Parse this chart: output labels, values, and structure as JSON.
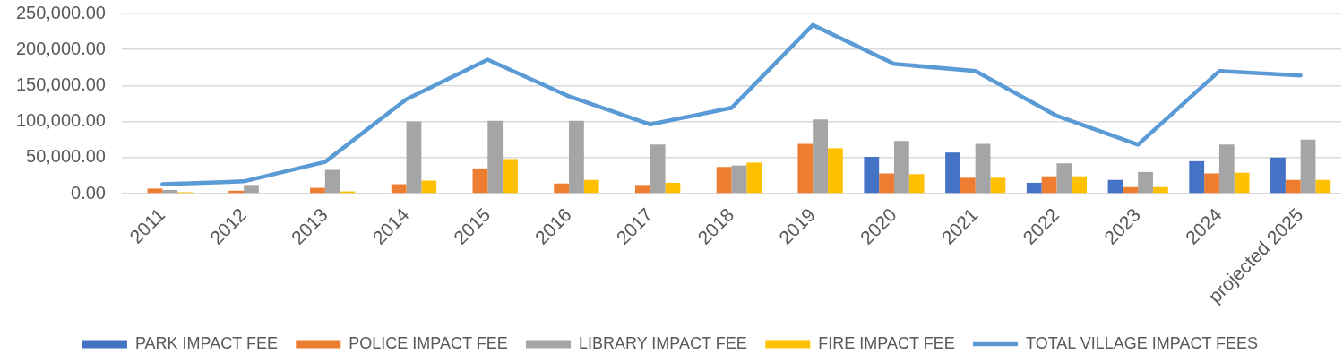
{
  "chart_data": {
    "type": "bar",
    "categories": [
      "2011",
      "2012",
      "2013",
      "2014",
      "2015",
      "2016",
      "2017",
      "2018",
      "2019",
      "2020",
      "2021",
      "2022",
      "2023",
      "2024",
      "projected 2025"
    ],
    "series": [
      {
        "name": "PARK IMPACT FEE",
        "color": "#4472c4",
        "values": [
          null,
          null,
          null,
          null,
          null,
          null,
          null,
          null,
          null,
          51000,
          57000,
          15000,
          19000,
          45000,
          50000
        ]
      },
      {
        "name": "POLICE IMPACT FEE",
        "color": "#ed7d31",
        "values": [
          7000,
          4000,
          8000,
          13000,
          35000,
          14000,
          12000,
          37000,
          69000,
          28000,
          22000,
          24000,
          9000,
          28000,
          19000
        ]
      },
      {
        "name": "LIBRARY IMPACT FEE",
        "color": "#a5a5a5",
        "values": [
          5000,
          12000,
          33000,
          100000,
          101000,
          101000,
          68000,
          39000,
          103000,
          73000,
          69000,
          42000,
          30000,
          68000,
          75000
        ]
      },
      {
        "name": "FIRE IMPACT FEE",
        "color": "#ffc000",
        "values": [
          2000,
          null,
          3000,
          18000,
          48000,
          19000,
          15000,
          43000,
          63000,
          27000,
          22000,
          24000,
          9000,
          29000,
          19000
        ]
      },
      {
        "name": "TOTAL VILLAGE IMPACT FEES",
        "type": "line",
        "color": "#5b9bd5",
        "marker": "none",
        "values": [
          13000,
          17000,
          44000,
          131000,
          186000,
          135000,
          96000,
          119000,
          234000,
          180000,
          170000,
          108000,
          68000,
          170000,
          164000
        ]
      }
    ],
    "ylim": [
      0,
      250000
    ],
    "yticks": [
      {
        "value": 0,
        "label": "0.00"
      },
      {
        "value": 50000,
        "label": "50,000.00"
      },
      {
        "value": 100000,
        "label": "100,000.00"
      },
      {
        "value": 150000,
        "label": "150,000.00"
      },
      {
        "value": 200000,
        "label": "200,000.00"
      },
      {
        "value": 250000,
        "label": "250,000.00"
      }
    ],
    "grid": "y",
    "legend": "bottom"
  }
}
